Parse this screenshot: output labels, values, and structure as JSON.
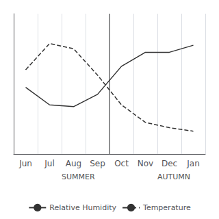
{
  "chart_data": {
    "type": "line",
    "categories": [
      "Jun",
      "Jul",
      "Aug",
      "Sep",
      "Oct",
      "Nov",
      "Dec",
      "Jan"
    ],
    "series": [
      {
        "name": "Relative Humidity",
        "color": "#333333",
        "line_style": "solid",
        "values": [
          0.48,
          0.38,
          0.37,
          0.44,
          0.6,
          0.68,
          0.68,
          0.72
        ]
      },
      {
        "name": "Temperature",
        "color": "#333333",
        "line_style": "dashed",
        "values": [
          0.58,
          0.73,
          0.7,
          0.55,
          0.38,
          0.28,
          0.25,
          0.23
        ]
      }
    ],
    "ylim": [
      0.1,
      0.9
    ],
    "yticks": [],
    "tick_labels": "x",
    "grid": true,
    "legend": "bottom",
    "annotations": [
      {
        "text": "SUMMER",
        "from": "Jun",
        "to": "Sep"
      },
      {
        "text": "AUTUMN",
        "from": "Oct",
        "to": "Jan"
      }
    ]
  }
}
